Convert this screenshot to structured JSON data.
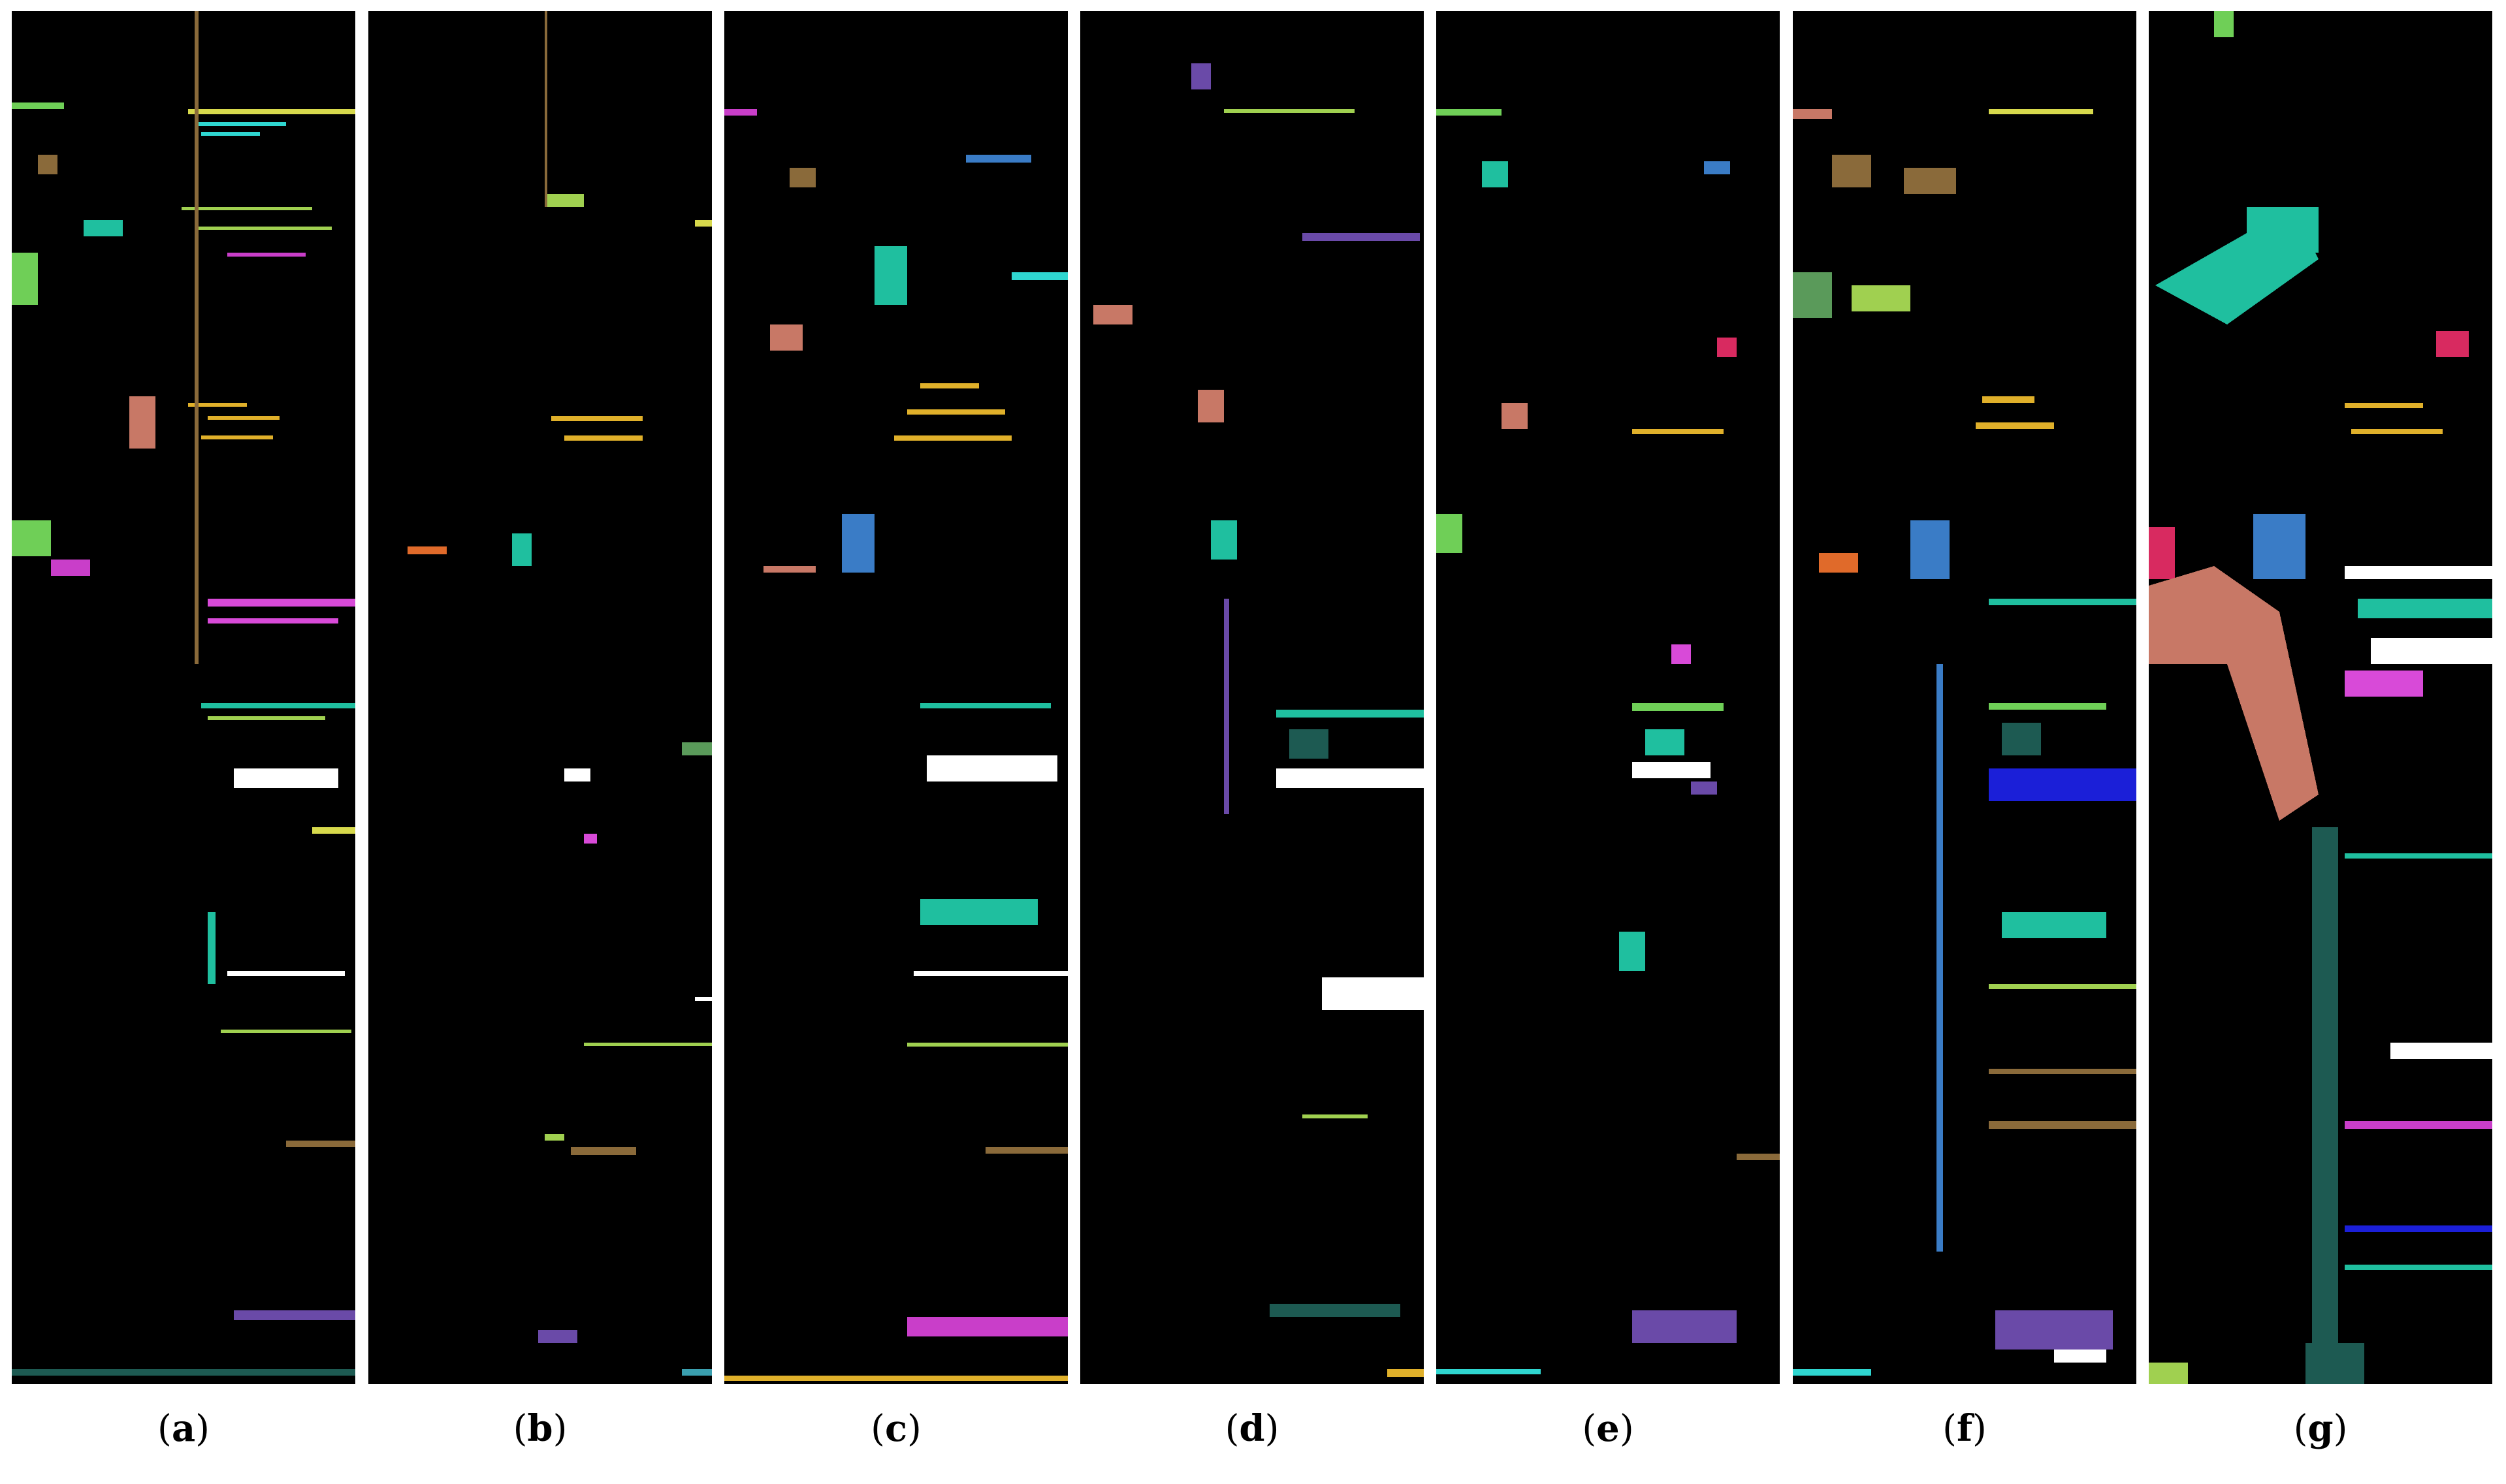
{
  "panels": [
    {
      "id": "a",
      "letter": "a"
    },
    {
      "id": "b",
      "letter": "b"
    },
    {
      "id": "c",
      "letter": "c"
    },
    {
      "id": "d",
      "letter": "d"
    },
    {
      "id": "e",
      "letter": "e"
    },
    {
      "id": "f",
      "letter": "f"
    },
    {
      "id": "g",
      "letter": "g"
    }
  ],
  "palette": {
    "background": "#000000",
    "classes": [
      "#6fcf57",
      "#d7d94c",
      "#2fd6d0",
      "#c93ec9",
      "#3a7cc6",
      "#c87866",
      "#1fbf9f",
      "#ffffff",
      "#1b1fd8",
      "#e0b02a",
      "#d82a60",
      "#5a9a5a",
      "#8a6a3a",
      "#3aa0b0",
      "#6a4aa8",
      "#1d5a52",
      "#d84ad8",
      "#a0d050",
      "#e06a2a"
    ]
  }
}
